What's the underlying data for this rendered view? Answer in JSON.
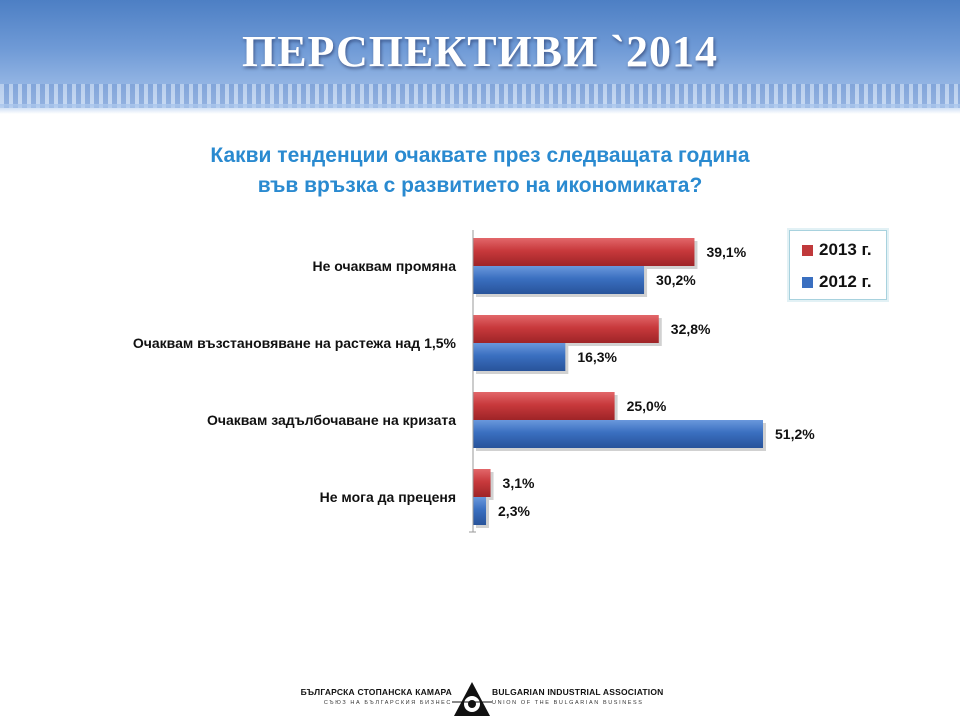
{
  "page": {
    "title": "ПЕРСПЕКТИВИ `2014",
    "question": [
      "Какви тенденции очаквате през следващата година",
      "във връзка с развитието на икономиката?"
    ]
  },
  "chart_data": {
    "type": "bar",
    "orientation": "horizontal",
    "categories": [
      "Не очаквам промяна",
      "Очаквам възстановяване на растежа над 1,5%",
      "Очаквам задълбочаване на кризата",
      "Не мога да преценя"
    ],
    "series": [
      {
        "name": "2013 г.",
        "values": [
          39.1,
          32.8,
          25.0,
          3.1
        ],
        "labels": [
          "39,1%",
          "32,8%",
          "25,0%",
          "3,1%"
        ],
        "color": "#c0393b"
      },
      {
        "name": "2012 г.",
        "values": [
          30.2,
          16.3,
          51.2,
          2.3
        ],
        "labels": [
          "30,2%",
          "16,3%",
          "51,2%",
          "2,3%"
        ],
        "color": "#3a6fc0"
      }
    ],
    "xlim": [
      0,
      51.2
    ],
    "grid": false,
    "legend_position": "top-right"
  },
  "footer": {
    "left_main": "БЪЛГАРСКА СТОПАНСКА КАМАРА",
    "left_sub": "СЪЮЗ НА БЪЛГАРСКИЯ БИЗНЕС",
    "right_main": "BULGARIAN INDUSTRIAL ASSOCIATION",
    "right_sub": "UNION OF THE BULGARIAN BUSINESS"
  },
  "colors": {
    "accent": "#2a8ad0",
    "bar_2013": "#c0393b",
    "bar_2012": "#3a6fc0"
  }
}
